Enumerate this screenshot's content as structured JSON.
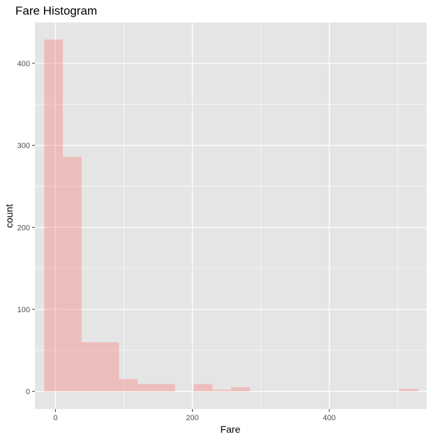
{
  "chart_data": {
    "type": "bar",
    "title": "Fare Histogram",
    "xlabel": "Fare",
    "ylabel": "count",
    "x_ticks": [
      0,
      200,
      400
    ],
    "y_ticks": [
      0,
      100,
      200,
      300,
      400
    ],
    "xlim": [
      -30,
      542
    ],
    "ylim": [
      -21.5,
      450
    ],
    "grid": true,
    "bin_width": 27.3,
    "bins": [
      {
        "x0": -16.4,
        "x1": 10.9,
        "count": 429
      },
      {
        "x0": 10.9,
        "x1": 38.2,
        "count": 286
      },
      {
        "x0": 38.2,
        "x1": 65.5,
        "count": 60
      },
      {
        "x0": 65.5,
        "x1": 92.8,
        "count": 60
      },
      {
        "x0": 92.8,
        "x1": 120.1,
        "count": 15
      },
      {
        "x0": 120.1,
        "x1": 147.4,
        "count": 9
      },
      {
        "x0": 147.4,
        "x1": 174.7,
        "count": 9
      },
      {
        "x0": 174.7,
        "x1": 202.0,
        "count": 0
      },
      {
        "x0": 202.0,
        "x1": 229.3,
        "count": 9
      },
      {
        "x0": 229.3,
        "x1": 256.6,
        "count": 2
      },
      {
        "x0": 256.6,
        "x1": 283.9,
        "count": 5
      },
      {
        "x0": 283.9,
        "x1": 311.2,
        "count": 0
      },
      {
        "x0": 311.2,
        "x1": 338.5,
        "count": 0
      },
      {
        "x0": 338.5,
        "x1": 365.8,
        "count": 0
      },
      {
        "x0": 365.8,
        "x1": 393.1,
        "count": 0
      },
      {
        "x0": 393.1,
        "x1": 420.4,
        "count": 0
      },
      {
        "x0": 420.4,
        "x1": 447.7,
        "count": 0
      },
      {
        "x0": 447.7,
        "x1": 475.0,
        "count": 0
      },
      {
        "x0": 475.0,
        "x1": 502.3,
        "count": 0
      },
      {
        "x0": 502.3,
        "x1": 529.6,
        "count": 3
      }
    ],
    "colors": {
      "panel_background": "#e5e5e5",
      "grid_major": "#ffffff",
      "bar_fill": "#f8766d",
      "bar_opacity": 0.35
    }
  }
}
